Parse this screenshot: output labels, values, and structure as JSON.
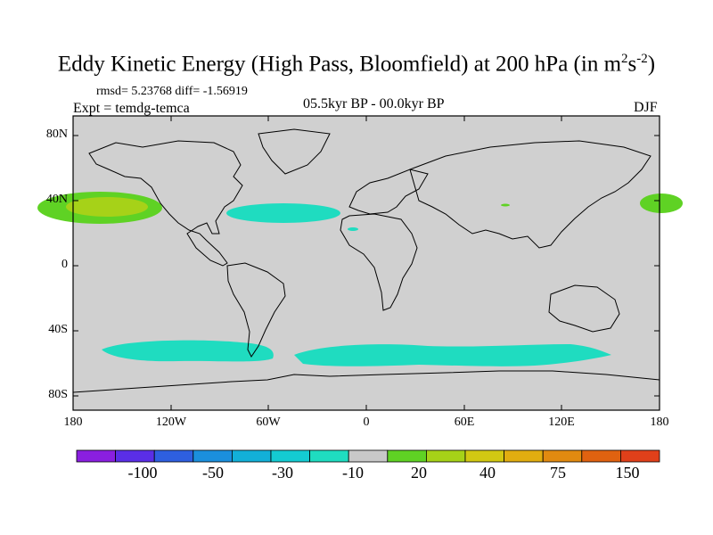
{
  "title": {
    "main": "Eddy Kinetic Energy (High Pass, Bloomfield) at 200 hPa (in m",
    "exp1": "2",
    "mid": "s",
    "exp2": "-2",
    "close": ")"
  },
  "stats": "rmsd= 5.23768 diff= -1.56919",
  "expt": "Expt = temdg-temca",
  "period": "05.5kyr BP - 00.0kyr BP",
  "season": "DJF",
  "lat_labels": [
    "80N",
    "40N",
    "0",
    "40S",
    "80S"
  ],
  "lon_labels": [
    "180",
    "120W",
    "60W",
    "0",
    "60E",
    "120E",
    "180"
  ],
  "colorbar": {
    "labels": [
      "-100",
      "-50",
      "-30",
      "-10",
      "20",
      "40",
      "75",
      "150"
    ],
    "colors": [
      "#8a1fe0",
      "#5a2ee6",
      "#2e5fe0",
      "#1b8fdd",
      "#12b0d8",
      "#14cbd2",
      "#1fdcc0",
      "#c8c8c8",
      "#5fd224",
      "#a6d218",
      "#d2c812",
      "#e1ad10",
      "#e18a10",
      "#e06210",
      "#e0401a"
    ]
  },
  "anomaly_colors": {
    "land_ocean_neutral": "#d0d0d0",
    "negative_small": "#1fdcc0",
    "positive_small": "#5fd224",
    "positive_medium": "#a6d218"
  }
}
